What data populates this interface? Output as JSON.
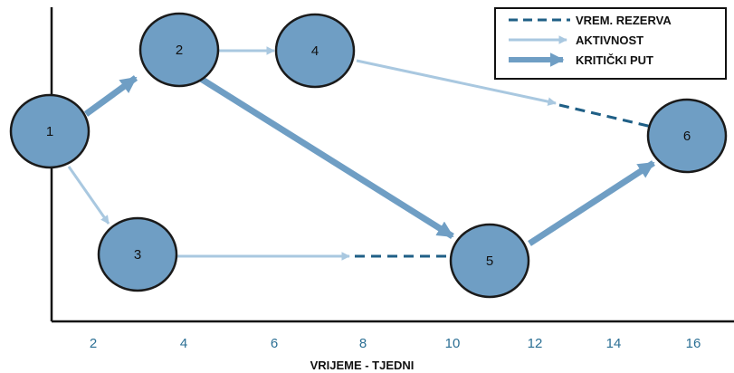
{
  "colors": {
    "node_fill": "#6f9ec4",
    "node_stroke": "#1a1a1a",
    "activity": "#a9c8e0",
    "critical": "#6f9ec4",
    "slack": "#1f5f86",
    "axis": "#111111",
    "tick_text": "#2b6f94"
  },
  "legend": {
    "slack": "VREM. REZERVA",
    "activity": "AKTIVNOST",
    "critical": "KRITIČKI PUT"
  },
  "axis": {
    "title": "VRIJEME - TJEDNI",
    "ticks": [
      "2",
      "4",
      "6",
      "8",
      "10",
      "12",
      "14",
      "16"
    ]
  },
  "nodes": [
    {
      "id": "1",
      "label": "1"
    },
    {
      "id": "2",
      "label": "2"
    },
    {
      "id": "3",
      "label": "3"
    },
    {
      "id": "4",
      "label": "4"
    },
    {
      "id": "5",
      "label": "5"
    },
    {
      "id": "6",
      "label": "6"
    }
  ],
  "edges": [
    {
      "from": "1",
      "to": "2",
      "type": "critical"
    },
    {
      "from": "2",
      "to": "5",
      "type": "critical"
    },
    {
      "from": "5",
      "to": "6",
      "type": "critical"
    },
    {
      "from": "2",
      "to": "4",
      "type": "activity"
    },
    {
      "from": "1",
      "to": "3",
      "type": "activity"
    },
    {
      "from": "4",
      "to": "6",
      "type": "activity+slack"
    },
    {
      "from": "3",
      "to": "5",
      "type": "activity+slack"
    }
  ]
}
